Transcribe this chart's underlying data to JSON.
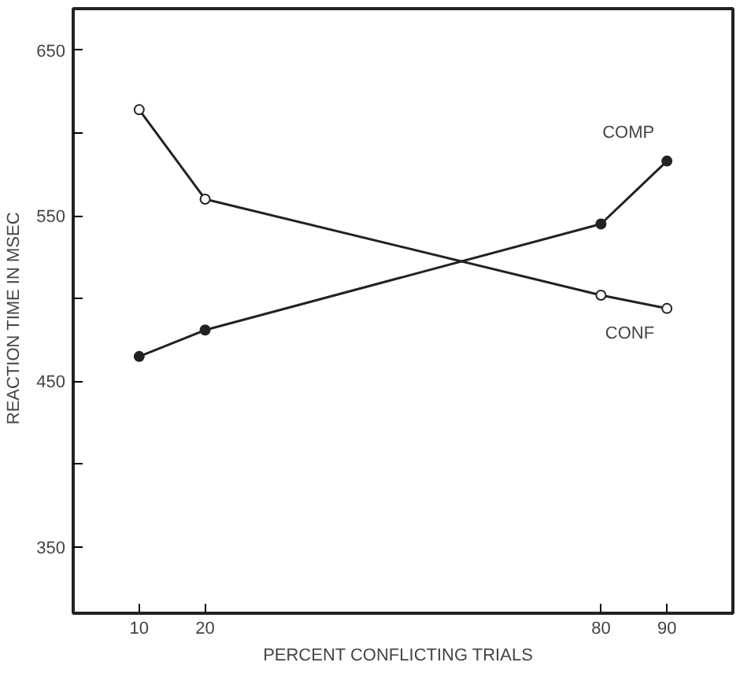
{
  "chart_data": {
    "type": "line",
    "xlabel": "PERCENT  CONFLICTING  TRIALS",
    "ylabel": "REACTION  TIME  IN  MSEC",
    "x": [
      10,
      20,
      80,
      90
    ],
    "series": [
      {
        "name": "COMP",
        "color": "#222222",
        "values": [
          465,
          481,
          545,
          583
        ],
        "marker": "circle"
      },
      {
        "name": "CONF",
        "color": "#222222",
        "values": [
          614,
          560,
          502,
          494
        ],
        "marker": "circle"
      }
    ],
    "xlim": [
      0,
      100
    ],
    "xticks": [
      10,
      20,
      80,
      90
    ],
    "ylim": [
      310,
      675
    ],
    "yticks": [
      350,
      {
        "value": 400,
        "label": null
      },
      450,
      {
        "value": 500,
        "label": null
      },
      550,
      {
        "value": 600,
        "label": null
      },
      650
    ],
    "grid": false
  }
}
